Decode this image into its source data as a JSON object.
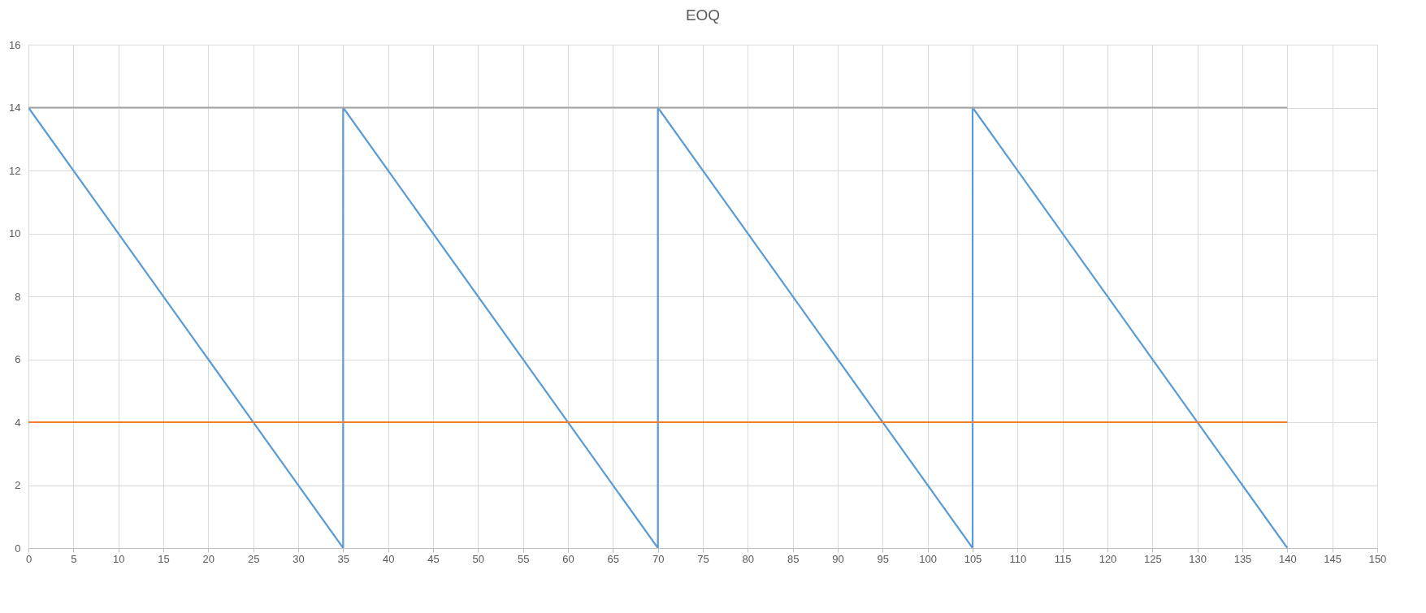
{
  "chart_data": {
    "type": "line",
    "title": "EOQ",
    "xlim": [
      0,
      150
    ],
    "xticks": [
      0,
      5,
      10,
      15,
      20,
      25,
      30,
      35,
      40,
      45,
      50,
      55,
      60,
      65,
      70,
      75,
      80,
      85,
      90,
      95,
      100,
      105,
      110,
      115,
      120,
      125,
      130,
      135,
      140,
      145,
      150
    ],
    "ylim": [
      0,
      16
    ],
    "yticks": [
      0,
      2,
      4,
      6,
      8,
      10,
      12,
      14,
      16
    ],
    "grid": true,
    "series": [
      {
        "color": "#5b9bd5",
        "x": [
          0,
          35,
          35,
          70,
          70,
          105,
          105,
          140
        ],
        "values": [
          14,
          0,
          14,
          0,
          14,
          0,
          14,
          0
        ]
      },
      {
        "color": "#ed7d31",
        "x": [
          0,
          140
        ],
        "values": [
          4,
          4
        ]
      },
      {
        "color": "#a5a5a5",
        "x": [
          0,
          140
        ],
        "values": [
          14,
          14
        ]
      }
    ]
  }
}
